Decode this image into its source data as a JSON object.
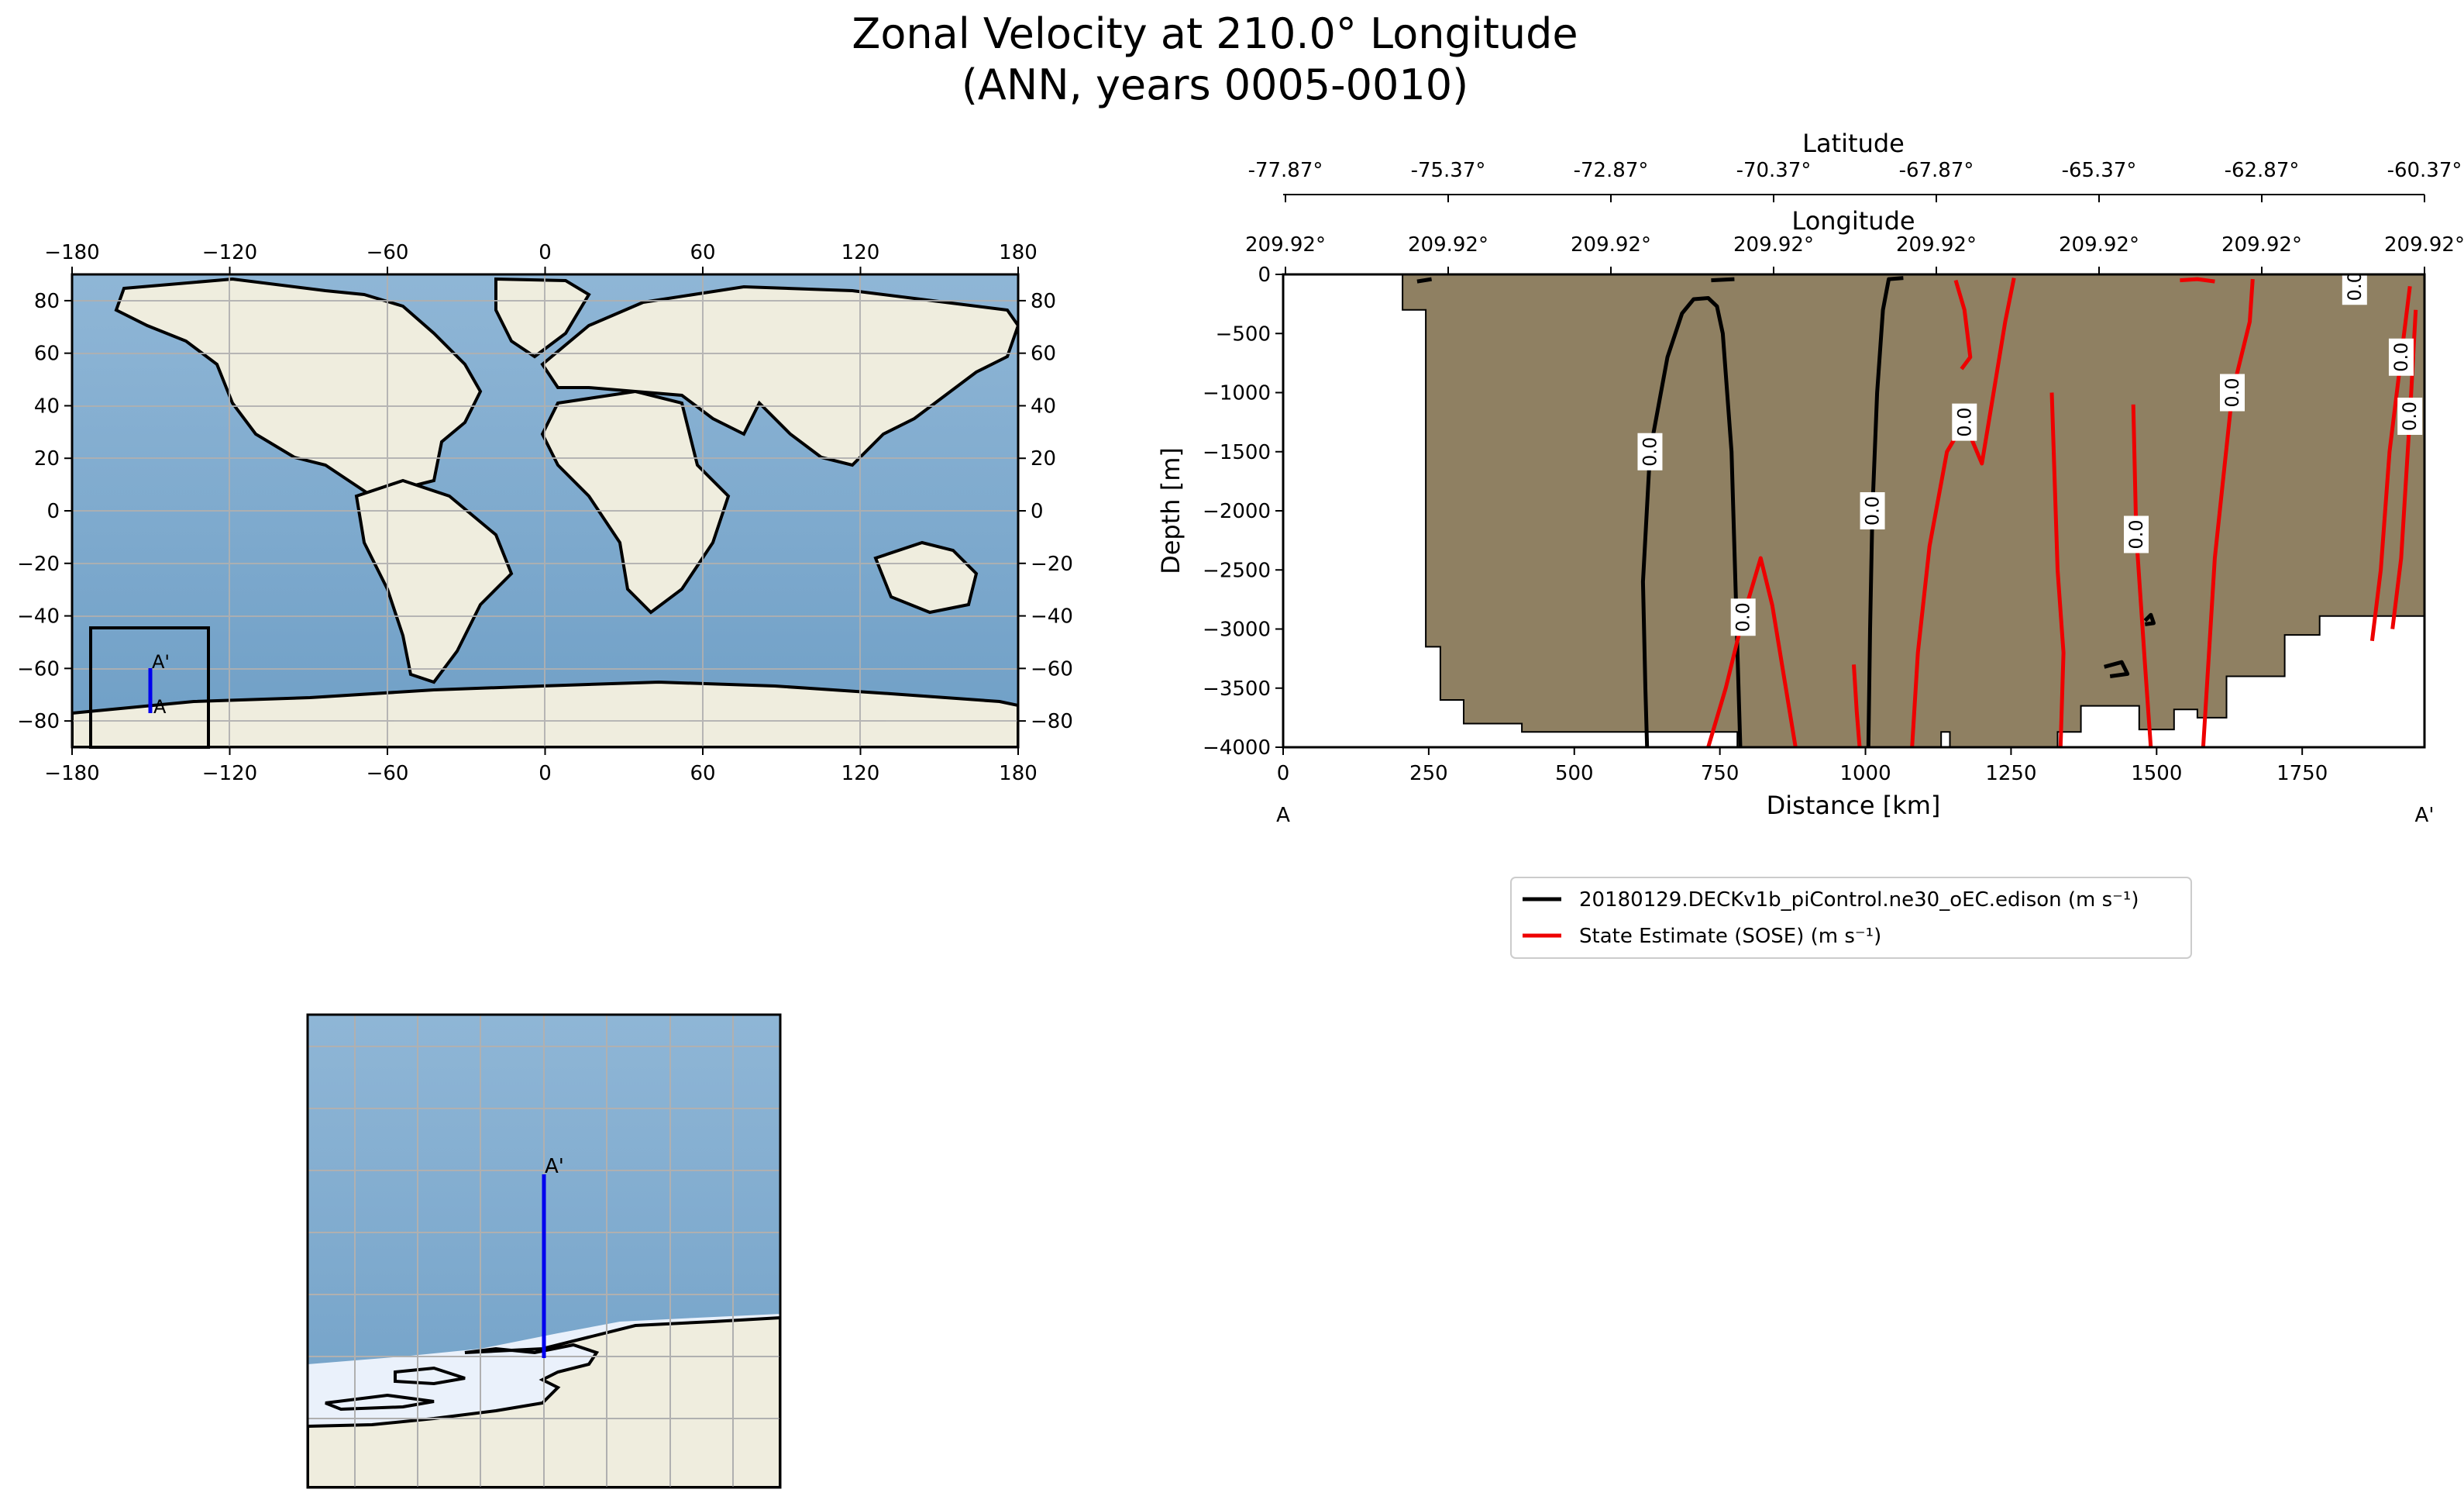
{
  "title": {
    "line1": "Zonal Velocity at 210.0° Longitude",
    "line2": "(ANN, years 0005-0010)"
  },
  "colors": {
    "ocean": "#7ea9cc",
    "land": "#efedde",
    "sea_ice": "#eaf1fb",
    "grid": "#b0b0b0",
    "transect": "#0000ee",
    "topography": "#8f8062",
    "model_contour": "#000000",
    "obs_contour": "#ee0000"
  },
  "world_map": {
    "x_ticks": [
      "−180",
      "−120",
      "−60",
      "0",
      "60",
      "120",
      "180"
    ],
    "y_ticks": [
      "80",
      "60",
      "40",
      "20",
      "0",
      "−20",
      "−40",
      "−60",
      "−80"
    ],
    "transect_start_label": "A",
    "transect_end_label": "A'"
  },
  "inset_map": {
    "transect_end_label": "A'"
  },
  "chart_data": {
    "type": "contour",
    "xlabel": "Distance [km]",
    "ylabel": "Depth [m]",
    "xlim": [
      0,
      1960
    ],
    "ylim": [
      -4000,
      0
    ],
    "x_ticks": [
      0,
      250,
      500,
      750,
      1000,
      1250,
      1500,
      1750
    ],
    "y_ticks": [
      0,
      -500,
      -1000,
      -1500,
      -2000,
      -2500,
      -3000,
      -3500,
      -4000
    ],
    "x_tick_labels": [
      "0",
      "250",
      "500",
      "750",
      "1000",
      "1250",
      "1500",
      "1750"
    ],
    "y_tick_labels": [
      "0",
      "−500",
      "−1000",
      "−1500",
      "−2000",
      "−2500",
      "−3000",
      "−3500",
      "−4000"
    ],
    "section_start_label": "A",
    "section_end_label": "A'",
    "top_axis_1": {
      "label": "Latitude",
      "ticks": [
        "-77.87°",
        "-75.37°",
        "-72.87°",
        "-70.37°",
        "-67.87°",
        "-65.37°",
        "-62.87°",
        "-60.37°"
      ]
    },
    "top_axis_2": {
      "label": "Longitude",
      "ticks": [
        "209.92°",
        "209.92°",
        "209.92°",
        "209.92°",
        "209.92°",
        "209.92°",
        "209.92°",
        "209.92°"
      ]
    },
    "contour_label": "0.0",
    "legend": {
      "placement": "below",
      "entries": [
        {
          "name": "20180129.DECKv1b_piControl.ne30_oEC.edison (m s⁻¹)",
          "color": "#000000"
        },
        {
          "name": "State Estimate (SOSE) (m s⁻¹)",
          "color": "#ee0000"
        }
      ]
    },
    "topography": [
      [
        0,
        0
      ],
      [
        205,
        0
      ],
      [
        205,
        -300
      ],
      [
        245,
        -300
      ],
      [
        245,
        -3150
      ],
      [
        270,
        -3150
      ],
      [
        270,
        -3600
      ],
      [
        310,
        -3600
      ],
      [
        310,
        -3800
      ],
      [
        410,
        -3800
      ],
      [
        410,
        -3870
      ],
      [
        780,
        -3870
      ],
      [
        780,
        -4000
      ],
      [
        1130,
        -4000
      ],
      [
        1130,
        -3870
      ],
      [
        1145,
        -3870
      ],
      [
        1145,
        -4000
      ],
      [
        1330,
        -4000
      ],
      [
        1330,
        -3870
      ],
      [
        1370,
        -3870
      ],
      [
        1370,
        -3650
      ],
      [
        1470,
        -3650
      ],
      [
        1470,
        -3850
      ],
      [
        1530,
        -3850
      ],
      [
        1530,
        -3680
      ],
      [
        1570,
        -3680
      ],
      [
        1570,
        -3750
      ],
      [
        1620,
        -3750
      ],
      [
        1620,
        -3400
      ],
      [
        1720,
        -3400
      ],
      [
        1720,
        -3050
      ],
      [
        1780,
        -3050
      ],
      [
        1780,
        -2890
      ],
      [
        1960,
        -2890
      ],
      [
        1960,
        0
      ]
    ],
    "model_zero_contours": [
      [
        [
          625,
          -4000
        ],
        [
          622,
          -3500
        ],
        [
          618,
          -2600
        ],
        [
          630,
          -1500
        ],
        [
          660,
          -700
        ],
        [
          685,
          -330
        ],
        [
          705,
          -210
        ],
        [
          730,
          -200
        ],
        [
          745,
          -270
        ],
        [
          755,
          -500
        ],
        [
          770,
          -1500
        ],
        [
          785,
          -4000
        ]
      ],
      [
        [
          1005,
          -4000
        ],
        [
          1008,
          -3000
        ],
        [
          1012,
          -2000
        ],
        [
          1020,
          -1000
        ],
        [
          1030,
          -300
        ],
        [
          1040,
          -40
        ],
        [
          1065,
          -30
        ]
      ],
      [
        [
          1480,
          -2930
        ],
        [
          1490,
          -2880
        ],
        [
          1495,
          -2950
        ],
        [
          1480,
          -2960
        ]
      ],
      [
        [
          1410,
          -3320
        ],
        [
          1440,
          -3280
        ],
        [
          1450,
          -3380
        ],
        [
          1420,
          -3400
        ]
      ],
      [
        [
          230,
          -60
        ],
        [
          255,
          -40
        ]
      ],
      [
        [
          735,
          -50
        ],
        [
          775,
          -40
        ]
      ]
    ],
    "obs_zero_contours": [
      [
        [
          730,
          -4000
        ],
        [
          760,
          -3500
        ],
        [
          790,
          -2900
        ],
        [
          820,
          -2400
        ],
        [
          840,
          -2800
        ],
        [
          860,
          -3400
        ],
        [
          880,
          -4000
        ]
      ],
      [
        [
          980,
          -3300
        ],
        [
          985,
          -3700
        ],
        [
          990,
          -4000
        ]
      ],
      [
        [
          1080,
          -4000
        ],
        [
          1090,
          -3200
        ],
        [
          1110,
          -2300
        ],
        [
          1140,
          -1500
        ],
        [
          1170,
          -1250
        ],
        [
          1200,
          -1600
        ],
        [
          1220,
          -1000
        ],
        [
          1240,
          -400
        ],
        [
          1255,
          -30
        ]
      ],
      [
        [
          1320,
          -1000
        ],
        [
          1330,
          -2500
        ],
        [
          1340,
          -3200
        ],
        [
          1335,
          -4000
        ]
      ],
      [
        [
          1460,
          -1100
        ],
        [
          1465,
          -2200
        ],
        [
          1480,
          -3300
        ],
        [
          1490,
          -4000
        ]
      ],
      [
        [
          1580,
          -4000
        ],
        [
          1590,
          -3200
        ],
        [
          1600,
          -2400
        ],
        [
          1630,
          -1000
        ],
        [
          1660,
          -400
        ],
        [
          1665,
          -40
        ]
      ],
      [
        [
          1870,
          -3100
        ],
        [
          1885,
          -2500
        ],
        [
          1900,
          -1500
        ],
        [
          1920,
          -700
        ],
        [
          1935,
          -100
        ]
      ],
      [
        [
          1905,
          -3000
        ],
        [
          1920,
          -2400
        ],
        [
          1935,
          -1200
        ],
        [
          1945,
          -300
        ]
      ],
      [
        [
          1155,
          -50
        ],
        [
          1170,
          -300
        ],
        [
          1180,
          -700
        ],
        [
          1165,
          -800
        ]
      ],
      [
        [
          1540,
          -50
        ],
        [
          1570,
          -40
        ],
        [
          1600,
          -60
        ]
      ],
      [
        [
          1820,
          -20
        ],
        [
          1840,
          -100
        ],
        [
          1850,
          -250
        ]
      ]
    ]
  }
}
